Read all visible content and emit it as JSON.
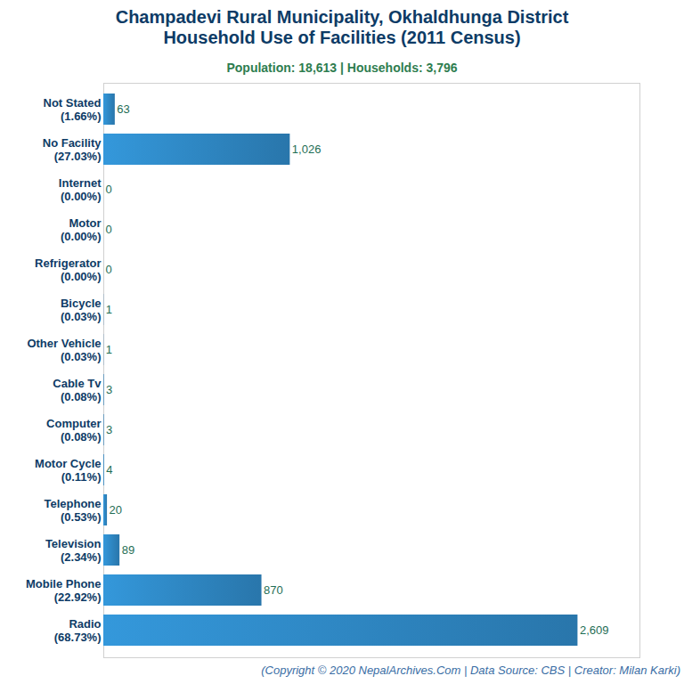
{
  "chart_data": {
    "type": "bar",
    "orientation": "horizontal",
    "title": "Champadevi Rural Municipality, Okhaldhunga District\nHousehold Use of Facilities (2011 Census)",
    "subtitle": "Population: 18,613 | Households: 3,796",
    "caption": "(Copyright © 2020 NepalArchives.Com | Data Source: CBS | Creator: Milan Karki)",
    "categories": [
      "Not Stated\n(1.66%)",
      "No Facility\n(27.03%)",
      "Internet\n(0.00%)",
      "Motor\n(0.00%)",
      "Refrigerator\n(0.00%)",
      "Bicycle\n(0.03%)",
      "Other Vehicle\n(0.03%)",
      "Cable Tv\n(0.08%)",
      "Computer\n(0.08%)",
      "Motor Cycle\n(0.11%)",
      "Telephone\n(0.53%)",
      "Television\n(2.34%)",
      "Mobile Phone\n(22.92%)",
      "Radio\n(68.73%)"
    ],
    "values": [
      63,
      1026,
      0,
      0,
      0,
      1,
      1,
      3,
      3,
      4,
      20,
      89,
      870,
      2609
    ],
    "value_labels": [
      "63",
      "1,026",
      "0",
      "0",
      "0",
      "1",
      "1",
      "3",
      "3",
      "4",
      "20",
      "89",
      "870",
      "2,609"
    ],
    "data_labels": true,
    "color": "#3498db",
    "xlim": [
      0,
      2950
    ],
    "tick_labels": "y",
    "grid": false
  }
}
